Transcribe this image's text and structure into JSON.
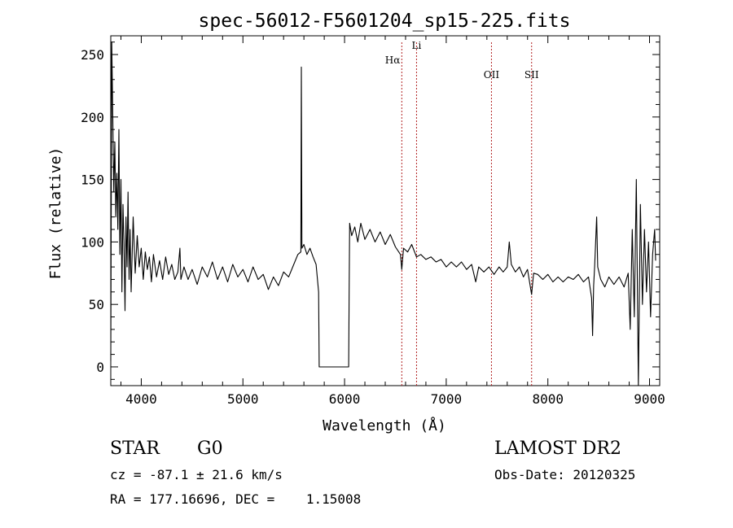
{
  "chart_data": {
    "type": "line",
    "title": "spec-56012-F5601204_sp15-225.fits",
    "xlabel": "Wavelength (Å)",
    "ylabel": "Flux (relative)",
    "xlim": [
      3700,
      9100
    ],
    "ylim": [
      -15,
      265
    ],
    "x_ticks": [
      4000,
      5000,
      6000,
      7000,
      8000,
      9000
    ],
    "y_ticks": [
      0,
      50,
      100,
      150,
      200,
      250
    ],
    "grid": false,
    "line_color": "#000000",
    "marker_color": "#b22222",
    "series": [
      {
        "values": [
          [
            3700,
            5
          ],
          [
            3710,
            260
          ],
          [
            3720,
            200
          ],
          [
            3730,
            140
          ],
          [
            3740,
            180
          ],
          [
            3750,
            120
          ],
          [
            3760,
            155
          ],
          [
            3770,
            110
          ],
          [
            3780,
            190
          ],
          [
            3790,
            90
          ],
          [
            3800,
            150
          ],
          [
            3810,
            60
          ],
          [
            3820,
            130
          ],
          [
            3830,
            100
          ],
          [
            3840,
            45
          ],
          [
            3850,
            120
          ],
          [
            3860,
            80
          ],
          [
            3870,
            140
          ],
          [
            3880,
            70
          ],
          [
            3890,
            110
          ],
          [
            3900,
            60
          ],
          [
            3920,
            120
          ],
          [
            3940,
            75
          ],
          [
            3960,
            105
          ],
          [
            3980,
            80
          ],
          [
            4000,
            95
          ],
          [
            4020,
            70
          ],
          [
            4040,
            92
          ],
          [
            4060,
            78
          ],
          [
            4080,
            88
          ],
          [
            4100,
            68
          ],
          [
            4120,
            90
          ],
          [
            4150,
            72
          ],
          [
            4180,
            85
          ],
          [
            4210,
            70
          ],
          [
            4240,
            88
          ],
          [
            4270,
            74
          ],
          [
            4300,
            82
          ],
          [
            4330,
            70
          ],
          [
            4360,
            76
          ],
          [
            4380,
            95
          ],
          [
            4390,
            70
          ],
          [
            4420,
            80
          ],
          [
            4460,
            70
          ],
          [
            4500,
            78
          ],
          [
            4550,
            66
          ],
          [
            4600,
            80
          ],
          [
            4650,
            72
          ],
          [
            4700,
            84
          ],
          [
            4750,
            70
          ],
          [
            4800,
            80
          ],
          [
            4850,
            68
          ],
          [
            4900,
            82
          ],
          [
            4950,
            72
          ],
          [
            5000,
            78
          ],
          [
            5050,
            68
          ],
          [
            5100,
            80
          ],
          [
            5150,
            70
          ],
          [
            5200,
            74
          ],
          [
            5250,
            62
          ],
          [
            5300,
            72
          ],
          [
            5350,
            65
          ],
          [
            5400,
            76
          ],
          [
            5450,
            72
          ],
          [
            5500,
            82
          ],
          [
            5540,
            90
          ],
          [
            5570,
            92
          ],
          [
            5575,
            240
          ],
          [
            5580,
            95
          ],
          [
            5600,
            98
          ],
          [
            5630,
            90
          ],
          [
            5660,
            95
          ],
          [
            5690,
            88
          ],
          [
            5720,
            82
          ],
          [
            5745,
            60
          ],
          [
            5750,
            0
          ],
          [
            6000,
            0
          ],
          [
            6040,
            0
          ],
          [
            6045,
            60
          ],
          [
            6050,
            115
          ],
          [
            6070,
            105
          ],
          [
            6100,
            112
          ],
          [
            6130,
            100
          ],
          [
            6160,
            115
          ],
          [
            6200,
            102
          ],
          [
            6250,
            110
          ],
          [
            6300,
            100
          ],
          [
            6350,
            108
          ],
          [
            6400,
            98
          ],
          [
            6450,
            106
          ],
          [
            6500,
            96
          ],
          [
            6550,
            90
          ],
          [
            6563,
            78
          ],
          [
            6580,
            95
          ],
          [
            6620,
            92
          ],
          [
            6660,
            98
          ],
          [
            6708,
            88
          ],
          [
            6750,
            90
          ],
          [
            6800,
            86
          ],
          [
            6850,
            88
          ],
          [
            6900,
            84
          ],
          [
            6950,
            86
          ],
          [
            7000,
            80
          ],
          [
            7050,
            84
          ],
          [
            7100,
            80
          ],
          [
            7150,
            84
          ],
          [
            7200,
            78
          ],
          [
            7250,
            82
          ],
          [
            7290,
            68
          ],
          [
            7320,
            80
          ],
          [
            7370,
            76
          ],
          [
            7420,
            80
          ],
          [
            7470,
            74
          ],
          [
            7520,
            80
          ],
          [
            7560,
            76
          ],
          [
            7600,
            80
          ],
          [
            7620,
            100
          ],
          [
            7640,
            82
          ],
          [
            7680,
            76
          ],
          [
            7720,
            80
          ],
          [
            7760,
            72
          ],
          [
            7800,
            78
          ],
          [
            7840,
            58
          ],
          [
            7860,
            75
          ],
          [
            7900,
            74
          ],
          [
            7950,
            70
          ],
          [
            8000,
            74
          ],
          [
            8050,
            68
          ],
          [
            8100,
            72
          ],
          [
            8150,
            68
          ],
          [
            8200,
            72
          ],
          [
            8250,
            70
          ],
          [
            8300,
            74
          ],
          [
            8350,
            68
          ],
          [
            8400,
            72
          ],
          [
            8430,
            55
          ],
          [
            8440,
            25
          ],
          [
            8450,
            65
          ],
          [
            8460,
            80
          ],
          [
            8480,
            120
          ],
          [
            8490,
            80
          ],
          [
            8520,
            70
          ],
          [
            8560,
            64
          ],
          [
            8600,
            72
          ],
          [
            8650,
            66
          ],
          [
            8700,
            72
          ],
          [
            8750,
            64
          ],
          [
            8790,
            75
          ],
          [
            8810,
            30
          ],
          [
            8830,
            110
          ],
          [
            8850,
            40
          ],
          [
            8870,
            150
          ],
          [
            8890,
            -15
          ],
          [
            8910,
            130
          ],
          [
            8930,
            50
          ],
          [
            8950,
            110
          ],
          [
            8970,
            60
          ],
          [
            8990,
            100
          ],
          [
            9010,
            40
          ],
          [
            9030,
            90
          ],
          [
            9050,
            110
          ],
          [
            9060,
            85
          ]
        ]
      }
    ],
    "annotations": [
      {
        "label": "Hα",
        "x": 6563
      },
      {
        "label": "Li",
        "x": 6708
      },
      {
        "label": "OII",
        "x": 7445
      },
      {
        "label": "SII",
        "x": 7840
      }
    ]
  },
  "footer": {
    "object_class": "STAR",
    "subclass": "G0",
    "survey": "LAMOST DR2",
    "velocity": "cz = -87.1 ± 21.6 km/s",
    "obs_date": "Obs-Date: 20120325",
    "coords": "RA = 177.16696, DEC =    1.15008"
  }
}
